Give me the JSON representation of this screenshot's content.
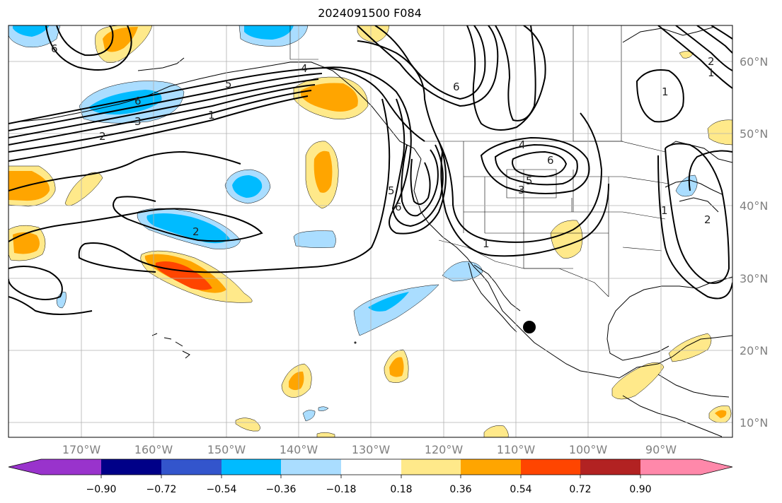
{
  "title": "2024091500 F084",
  "map": {
    "lon_labels": [
      "170°W",
      "160°W",
      "150°W",
      "140°W",
      "130°W",
      "120°W",
      "110°W",
      "100°W",
      "90°W"
    ],
    "lat_labels": [
      "60°N",
      "50°N",
      "40°N",
      "30°N",
      "20°N",
      "10°N"
    ],
    "contour_labels": [
      "6",
      "3",
      "2",
      "1",
      "5",
      "4",
      "6",
      "6",
      "4",
      "6",
      "5",
      "3",
      "5",
      "6",
      "2",
      "1",
      "1",
      "1",
      "2",
      "1",
      "2"
    ]
  },
  "colorbar": {
    "ticks": [
      "−0.90",
      "−0.72",
      "−0.54",
      "−0.36",
      "−0.18",
      "0.18",
      "0.36",
      "0.54",
      "0.72",
      "0.90"
    ],
    "colors": [
      "#9933cc",
      "#000088",
      "#3355cc",
      "#00bbff",
      "#aaddff",
      "#ffffff",
      "#ffe98a",
      "#ffa500",
      "#ff4500",
      "#b22222",
      "#ff88aa"
    ]
  },
  "marker": {
    "name": "black-dot"
  },
  "colors": {
    "axis": "#808080",
    "grid": "#b0b0b0",
    "contour": "#000000"
  }
}
